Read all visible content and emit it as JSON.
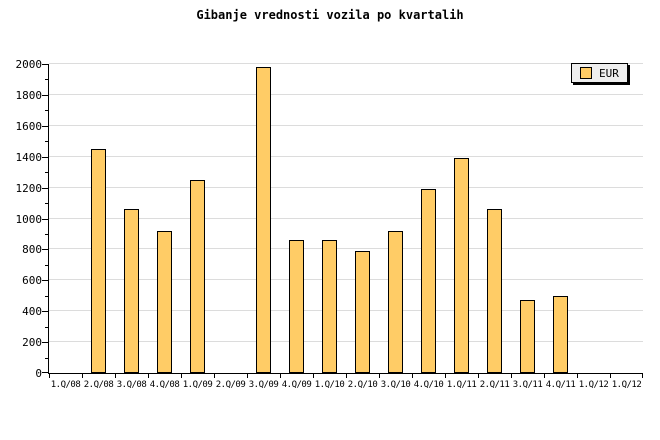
{
  "legend": {
    "label": "EUR",
    "swatch_color": "#ffcc66"
  },
  "colors": {
    "bar_fill": "#ffcc66",
    "bar_border": "#000000",
    "gridline": "#dcdcdc",
    "axis": "#000000",
    "background": "#ffffff",
    "legend_background": "#eeeeee"
  },
  "chart_data": {
    "type": "bar",
    "title": "Gibanje vrednosti vozila po kvartalih",
    "categories": [
      "1.Q/08",
      "2.Q/08",
      "3.Q/08",
      "4.Q/08",
      "1.Q/09",
      "2.Q/09",
      "3.Q/09",
      "4.Q/09",
      "1.Q/10",
      "2.Q/10",
      "3.Q/10",
      "4.Q/10",
      "1.Q/11",
      "2.Q/11",
      "3.Q/11",
      "4.Q/11",
      "1.Q/12",
      "1.Q/12"
    ],
    "values": [
      0,
      1450,
      1060,
      920,
      1250,
      0,
      1980,
      860,
      860,
      790,
      920,
      1190,
      1390,
      1060,
      470,
      500,
      0,
      0
    ],
    "series": [
      {
        "name": "EUR"
      }
    ],
    "xlabel": "",
    "ylabel": "",
    "ylim": [
      0,
      2000
    ],
    "y_major_step": 200,
    "y_minor_step": 100,
    "y_tick_labels": [
      "0",
      "200",
      "400",
      "600",
      "800",
      "1000",
      "1200",
      "1400",
      "1600",
      "1800",
      "2000"
    ],
    "grid": true,
    "legend_position": "top-right"
  }
}
